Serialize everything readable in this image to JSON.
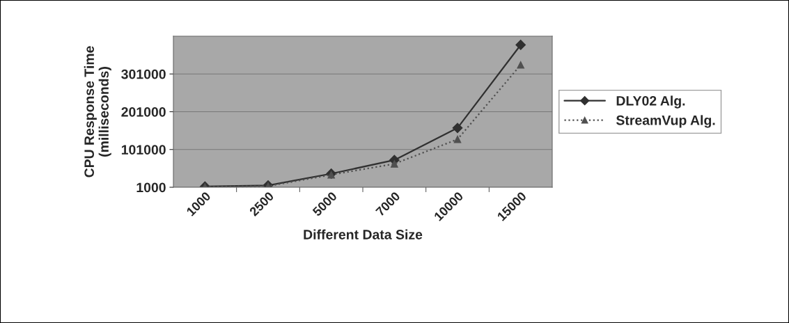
{
  "chart_data": {
    "type": "line",
    "xlabel": "Different Data Size",
    "ylabel": "CPU Response Time\n(milliseconds)",
    "categories": [
      "1000",
      "2500",
      "5000",
      "7000",
      "10000",
      "15000"
    ],
    "series": [
      {
        "name": "DLY02 Alg.",
        "color": "#303030",
        "values": [
          3000,
          6000,
          37000,
          73000,
          158000,
          378000
        ],
        "marker": "diamond",
        "line_style": "solid"
      },
      {
        "name": "StreamVup Alg.",
        "color": "#505050",
        "values": [
          2000,
          4000,
          34000,
          63000,
          128000,
          325000
        ],
        "marker": "triangle",
        "line_style": "dotted"
      }
    ],
    "ylim": [
      1000,
      401000
    ],
    "yticks": [
      1000,
      101000,
      201000,
      301000
    ],
    "grid": "y",
    "legend": "right"
  }
}
